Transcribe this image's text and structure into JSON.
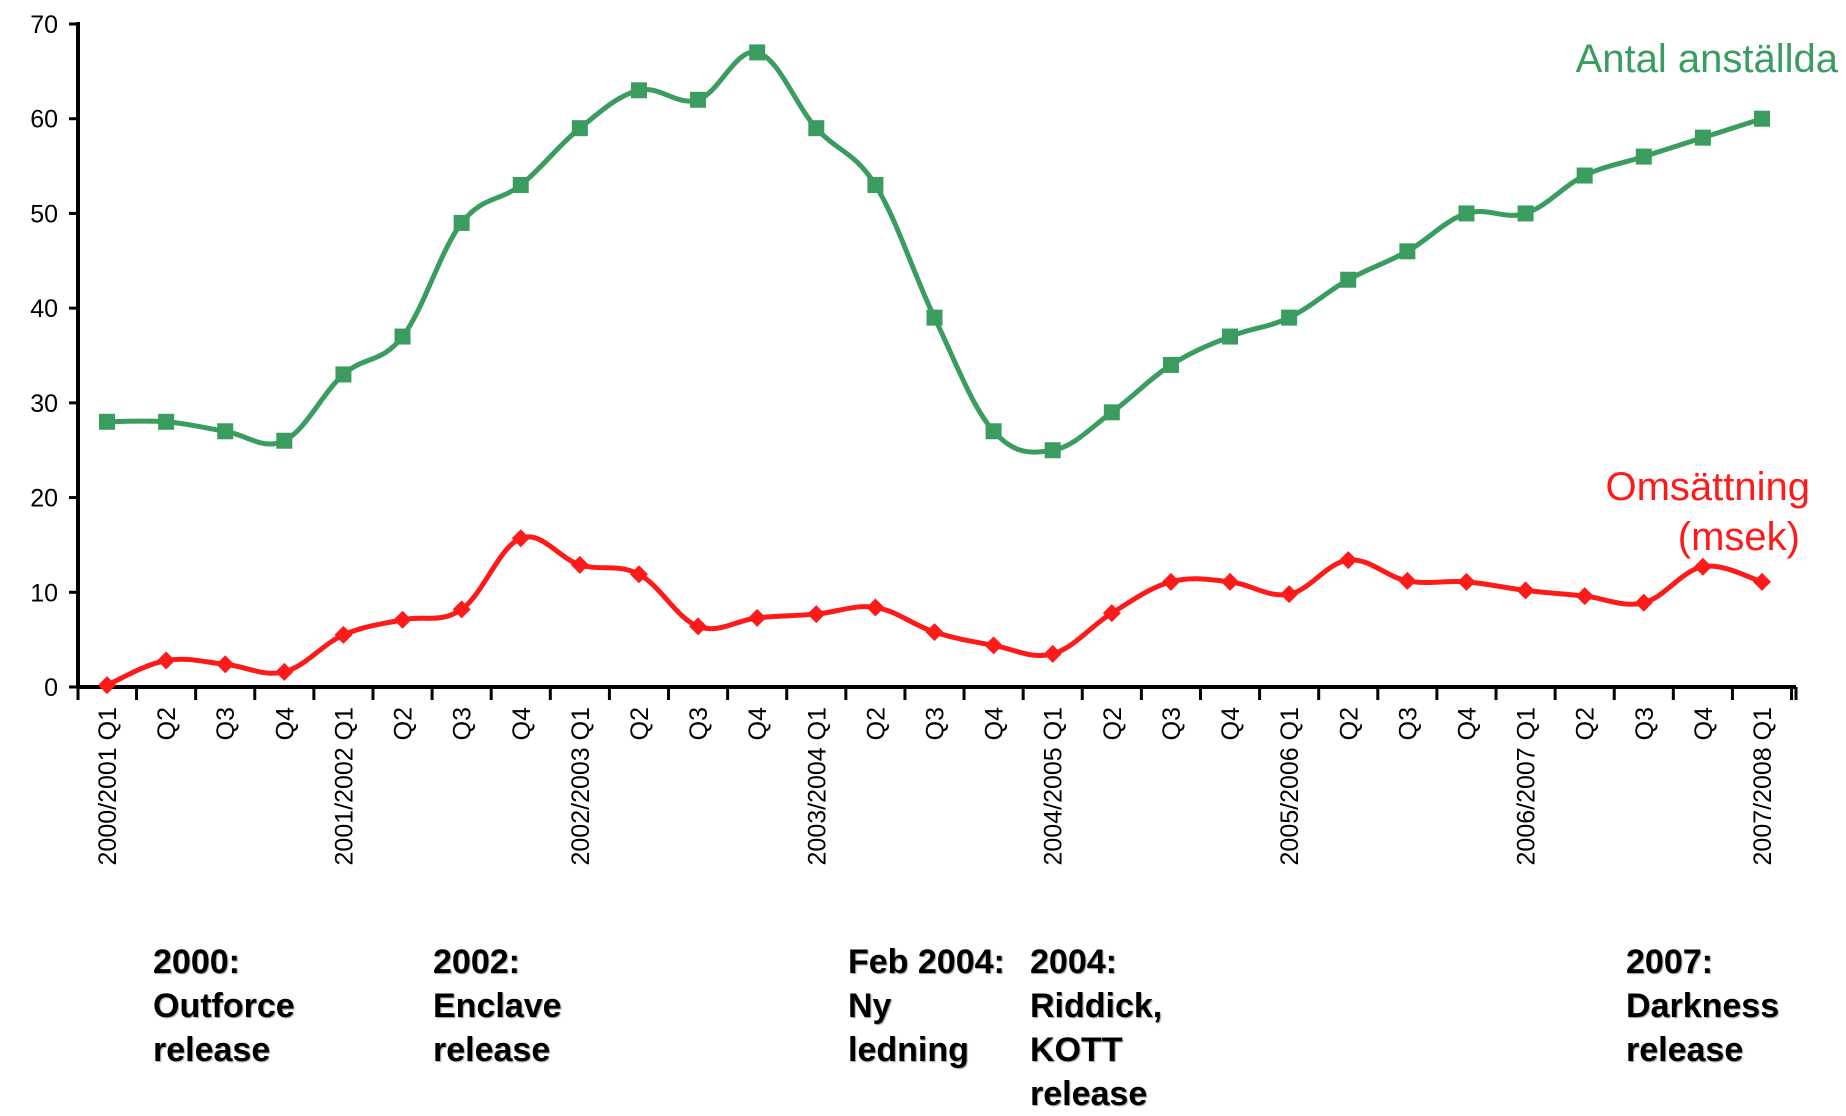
{
  "chart_data": {
    "type": "line",
    "categories": [
      "2000/2001 Q1",
      "Q2",
      "Q3",
      "Q4",
      "2001/2002 Q1",
      "Q2",
      "Q3",
      "Q4",
      "2002/2003 Q1",
      "Q2",
      "Q3",
      "Q4",
      "2003/2004 Q1",
      "Q2",
      "Q3",
      "Q4",
      "2004/2005 Q1",
      "Q2",
      "Q3",
      "Q4",
      "2005/2006 Q1",
      "Q2",
      "Q3",
      "Q4",
      "2006/2007 Q1",
      "Q2",
      "Q3",
      "Q4",
      "2007/2008 Q1"
    ],
    "ylim": [
      0,
      70
    ],
    "yticks": [
      0,
      10,
      20,
      30,
      40,
      50,
      60,
      70
    ],
    "series": [
      {
        "name": "Antal anställda",
        "color": "#3a9c5f",
        "marker": "square",
        "values": [
          28,
          28,
          27,
          26,
          33,
          37,
          49,
          53,
          59,
          63,
          62,
          67,
          59,
          53,
          39,
          27,
          25,
          29,
          34,
          37,
          39,
          43,
          46,
          50,
          50,
          54,
          56,
          58,
          60
        ]
      },
      {
        "name": "Omsättning (msek)",
        "color": "#ff1a1a",
        "marker": "diamond",
        "values": [
          0.2,
          2.8,
          2.4,
          1.6,
          5.5,
          7.1,
          8.2,
          15.7,
          12.9,
          11.9,
          6.4,
          7.3,
          7.7,
          8.4,
          5.8,
          4.4,
          3.5,
          7.8,
          11.1,
          11.1,
          9.8,
          13.4,
          11.2,
          11.1,
          10.2,
          9.6,
          8.9,
          12.7,
          11.1
        ]
      }
    ],
    "legend_labels": {
      "green": "Antal anställda",
      "red_line1": "Omsättning",
      "red_line2": "(msek)"
    },
    "grid": false
  },
  "annotations": [
    {
      "lines": [
        "2000:",
        "Outforce",
        "release"
      ]
    },
    {
      "lines": [
        "2002:",
        "Enclave",
        "release"
      ]
    },
    {
      "lines": [
        "Feb 2004:",
        "Ny",
        "ledning"
      ]
    },
    {
      "lines": [
        "2004:",
        "Riddick,",
        "KOTT",
        "release"
      ]
    },
    {
      "lines": [
        "2007:",
        "Darkness",
        "release"
      ]
    }
  ]
}
